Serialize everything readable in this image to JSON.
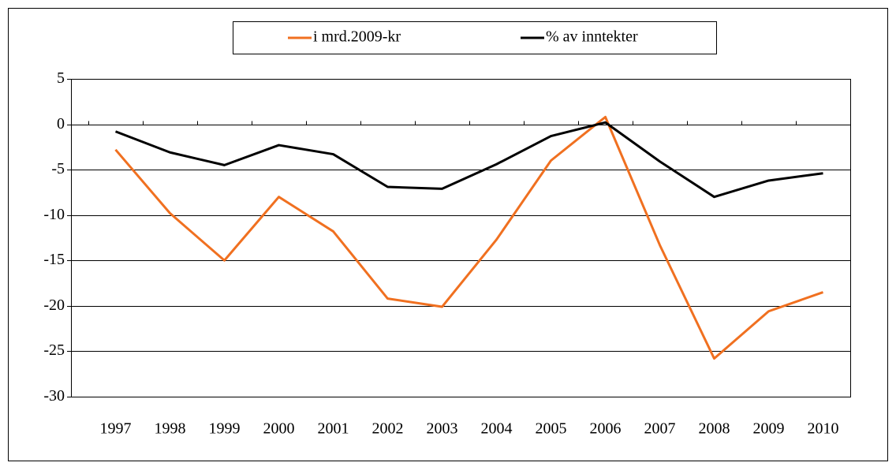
{
  "chart_data": {
    "type": "line",
    "categories": [
      "1997",
      "1998",
      "1999",
      "2000",
      "2001",
      "2002",
      "2003",
      "2004",
      "2005",
      "2006",
      "2007",
      "2008",
      "2009",
      "2010"
    ],
    "series": [
      {
        "name": "i mrd.2009-kr",
        "color": "#f07020",
        "values": [
          -2.8,
          -9.8,
          -15,
          -8,
          -11.8,
          -19.2,
          -20.1,
          -12.7,
          -4,
          0.8,
          -13.3,
          -25.8,
          -20.6,
          -18.5
        ]
      },
      {
        "name": "% av inntekter",
        "color": "#000000",
        "values": [
          -0.8,
          -3.1,
          -4.5,
          -2.3,
          -3.3,
          -6.9,
          -7.1,
          -4.4,
          -1.3,
          0.2,
          -4.1,
          -8,
          -6.2,
          -5.4
        ]
      }
    ],
    "ylim": [
      -30,
      5
    ],
    "yticks": [
      5,
      0,
      -5,
      -10,
      -15,
      -20,
      -25,
      -30
    ],
    "grid": true,
    "legend": "top"
  }
}
